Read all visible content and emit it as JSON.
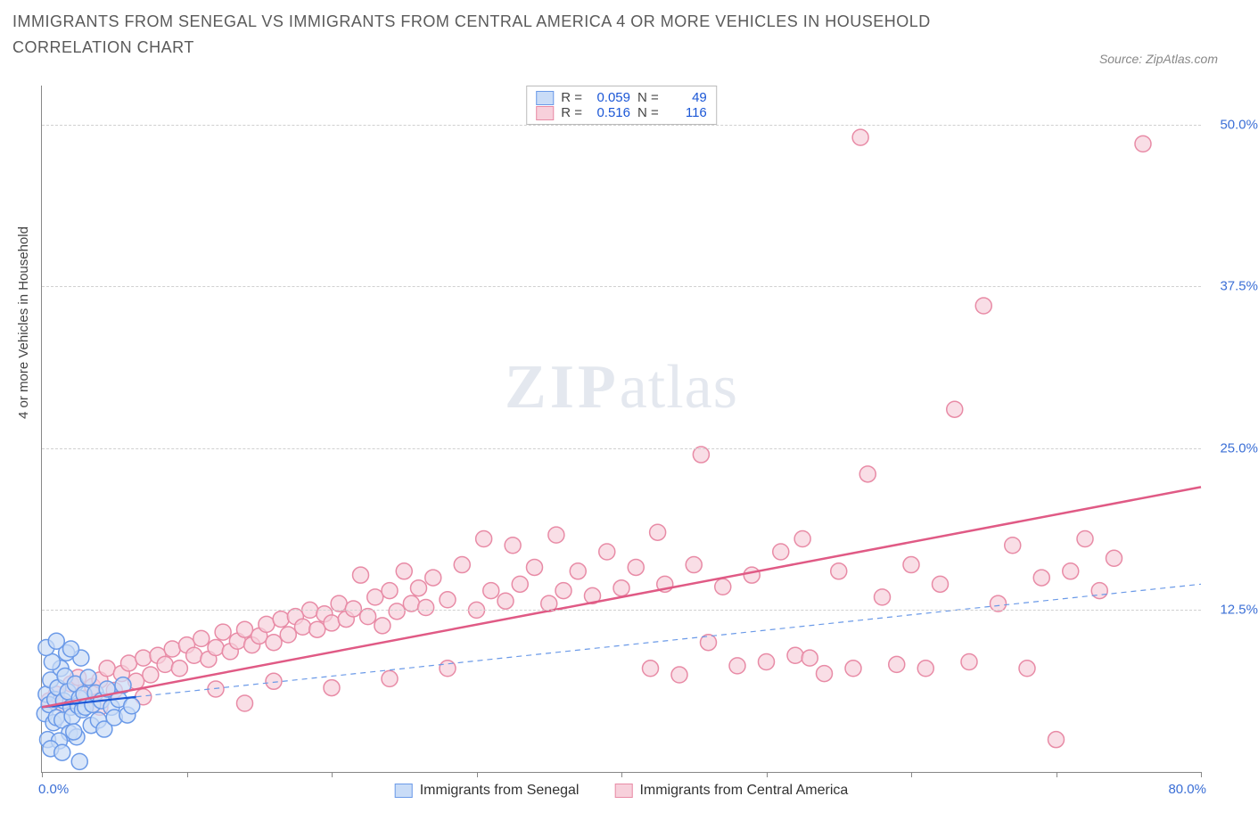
{
  "title": "IMMIGRANTS FROM SENEGAL VS IMMIGRANTS FROM CENTRAL AMERICA 4 OR MORE VEHICLES IN HOUSEHOLD CORRELATION CHART",
  "source": "Source: ZipAtlas.com",
  "y_axis_title": "4 or more Vehicles in Household",
  "watermark_a": "ZIP",
  "watermark_b": "atlas",
  "chart": {
    "type": "scatter",
    "xlim": [
      0,
      80
    ],
    "ylim": [
      0,
      53
    ],
    "x_ticks": [
      0,
      10,
      20,
      30,
      40,
      50,
      60,
      70,
      80
    ],
    "x_tick_labels": {
      "0": "0.0%",
      "80": "80.0%"
    },
    "y_ticks": [
      12.5,
      25,
      37.5,
      50
    ],
    "y_tick_labels": {
      "12.5": "12.5%",
      "25": "25.0%",
      "37.5": "37.5%",
      "50": "50.0%"
    },
    "background_color": "#ffffff",
    "grid_color": "#d0d0d0",
    "marker_radius": 9,
    "marker_stroke_width": 1.5,
    "series": [
      {
        "id": "senegal",
        "label": "Immigrants from Senegal",
        "color_fill": "#c9dcf7",
        "color_stroke": "#6b9ae8",
        "r": "0.059",
        "n": "49",
        "trend": {
          "x1": 0,
          "y1": 5.0,
          "x2": 6.5,
          "y2": 5.8,
          "color": "#1b57d6",
          "width": 2.2,
          "dash": ""
        },
        "trend_ext": {
          "x1": 6.5,
          "y1": 5.8,
          "x2": 80,
          "y2": 14.5,
          "color": "#6b9ae8",
          "width": 1.2,
          "dash": "6,5"
        },
        "points": [
          [
            0.2,
            4.5
          ],
          [
            0.3,
            6.0
          ],
          [
            0.5,
            5.2
          ],
          [
            0.6,
            7.1
          ],
          [
            0.8,
            3.8
          ],
          [
            0.9,
            5.6
          ],
          [
            1.0,
            4.2
          ],
          [
            1.1,
            6.5
          ],
          [
            1.3,
            8.0
          ],
          [
            1.4,
            4.0
          ],
          [
            1.5,
            5.5
          ],
          [
            1.6,
            7.4
          ],
          [
            1.8,
            6.2
          ],
          [
            1.9,
            3.0
          ],
          [
            2.0,
            5.0
          ],
          [
            2.1,
            4.3
          ],
          [
            2.3,
            6.8
          ],
          [
            2.4,
            2.7
          ],
          [
            2.5,
            5.1
          ],
          [
            2.7,
            8.8
          ],
          [
            0.4,
            2.5
          ],
          [
            0.7,
            8.5
          ],
          [
            1.2,
            2.4
          ],
          [
            1.7,
            9.2
          ],
          [
            2.2,
            3.1
          ],
          [
            2.6,
            5.7
          ],
          [
            2.8,
            4.8
          ],
          [
            2.9,
            6.0
          ],
          [
            3.0,
            5.0
          ],
          [
            3.2,
            7.3
          ],
          [
            3.4,
            3.6
          ],
          [
            3.5,
            5.2
          ],
          [
            3.7,
            6.1
          ],
          [
            3.9,
            4.0
          ],
          [
            4.1,
            5.5
          ],
          [
            4.3,
            3.3
          ],
          [
            4.5,
            6.4
          ],
          [
            4.8,
            5.0
          ],
          [
            5.0,
            4.2
          ],
          [
            5.3,
            5.6
          ],
          [
            5.6,
            6.7
          ],
          [
            5.9,
            4.4
          ],
          [
            6.2,
            5.1
          ],
          [
            0.3,
            9.6
          ],
          [
            0.6,
            1.8
          ],
          [
            1.0,
            10.1
          ],
          [
            1.4,
            1.5
          ],
          [
            2.0,
            9.5
          ],
          [
            2.6,
            0.8
          ]
        ]
      },
      {
        "id": "central_america",
        "label": "Immigrants from Central America",
        "color_fill": "#f7d0db",
        "color_stroke": "#e88ba6",
        "r": "0.516",
        "n": "116",
        "trend": {
          "x1": 0,
          "y1": 5.0,
          "x2": 80,
          "y2": 22.0,
          "color": "#e05a85",
          "width": 2.5,
          "dash": ""
        },
        "points": [
          [
            0.5,
            5.5
          ],
          [
            1,
            6.0
          ],
          [
            1.5,
            5.2
          ],
          [
            2,
            6.8
          ],
          [
            2.5,
            7.3
          ],
          [
            3,
            5.7
          ],
          [
            3.5,
            6.6
          ],
          [
            4,
            7.1
          ],
          [
            4.5,
            8.0
          ],
          [
            5,
            6.3
          ],
          [
            5.5,
            7.6
          ],
          [
            6,
            8.4
          ],
          [
            6.5,
            7.0
          ],
          [
            7,
            8.8
          ],
          [
            7.5,
            7.5
          ],
          [
            8,
            9.0
          ],
          [
            8.5,
            8.3
          ],
          [
            9,
            9.5
          ],
          [
            9.5,
            8.0
          ],
          [
            10,
            9.8
          ],
          [
            10.5,
            9.0
          ],
          [
            11,
            10.3
          ],
          [
            11.5,
            8.7
          ],
          [
            12,
            9.6
          ],
          [
            12.5,
            10.8
          ],
          [
            13,
            9.3
          ],
          [
            13.5,
            10.1
          ],
          [
            14,
            11.0
          ],
          [
            14.5,
            9.8
          ],
          [
            15,
            10.5
          ],
          [
            15.5,
            11.4
          ],
          [
            16,
            10.0
          ],
          [
            16.5,
            11.8
          ],
          [
            17,
            10.6
          ],
          [
            17.5,
            12.0
          ],
          [
            18,
            11.2
          ],
          [
            18.5,
            12.5
          ],
          [
            19,
            11.0
          ],
          [
            19.5,
            12.2
          ],
          [
            20,
            11.5
          ],
          [
            20.5,
            13.0
          ],
          [
            21,
            11.8
          ],
          [
            21.5,
            12.6
          ],
          [
            22,
            15.2
          ],
          [
            22.5,
            12.0
          ],
          [
            23,
            13.5
          ],
          [
            23.5,
            11.3
          ],
          [
            24,
            14.0
          ],
          [
            24.5,
            12.4
          ],
          [
            25,
            15.5
          ],
          [
            25.5,
            13.0
          ],
          [
            26,
            14.2
          ],
          [
            26.5,
            12.7
          ],
          [
            27,
            15.0
          ],
          [
            28,
            13.3
          ],
          [
            29,
            16.0
          ],
          [
            30,
            12.5
          ],
          [
            30.5,
            18.0
          ],
          [
            31,
            14.0
          ],
          [
            32,
            13.2
          ],
          [
            32.5,
            17.5
          ],
          [
            33,
            14.5
          ],
          [
            34,
            15.8
          ],
          [
            35,
            13.0
          ],
          [
            35.5,
            18.3
          ],
          [
            36,
            14.0
          ],
          [
            37,
            15.5
          ],
          [
            38,
            13.6
          ],
          [
            39,
            17.0
          ],
          [
            40,
            14.2
          ],
          [
            41,
            15.8
          ],
          [
            42,
            8.0
          ],
          [
            42.5,
            18.5
          ],
          [
            43,
            14.5
          ],
          [
            44,
            7.5
          ],
          [
            45,
            16.0
          ],
          [
            45.5,
            24.5
          ],
          [
            46,
            10.0
          ],
          [
            47,
            14.3
          ],
          [
            48,
            8.2
          ],
          [
            49,
            15.2
          ],
          [
            50,
            8.5
          ],
          [
            51,
            17.0
          ],
          [
            52,
            9.0
          ],
          [
            52.5,
            18.0
          ],
          [
            53,
            8.8
          ],
          [
            54,
            7.6
          ],
          [
            55,
            15.5
          ],
          [
            56,
            8.0
          ],
          [
            56.5,
            49.0
          ],
          [
            57,
            23.0
          ],
          [
            58,
            13.5
          ],
          [
            59,
            8.3
          ],
          [
            60,
            16.0
          ],
          [
            61,
            8.0
          ],
          [
            62,
            14.5
          ],
          [
            63,
            28.0
          ],
          [
            64,
            8.5
          ],
          [
            65,
            36.0
          ],
          [
            66,
            13.0
          ],
          [
            67,
            17.5
          ],
          [
            68,
            8.0
          ],
          [
            69,
            15.0
          ],
          [
            70,
            2.5
          ],
          [
            71,
            15.5
          ],
          [
            72,
            18.0
          ],
          [
            73,
            14.0
          ],
          [
            74,
            16.5
          ],
          [
            76,
            48.5
          ],
          [
            4,
            5.0
          ],
          [
            7,
            5.8
          ],
          [
            12,
            6.4
          ],
          [
            16,
            7.0
          ],
          [
            20,
            6.5
          ],
          [
            24,
            7.2
          ],
          [
            28,
            8.0
          ],
          [
            14,
            5.3
          ]
        ]
      }
    ]
  },
  "legend_labels": {
    "r_prefix": "R =",
    "n_prefix": "N ="
  }
}
